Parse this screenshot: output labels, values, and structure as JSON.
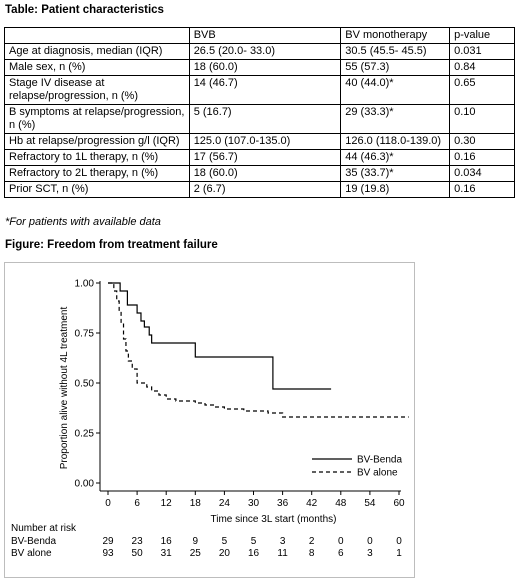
{
  "table": {
    "title": "Table: Patient characteristics",
    "headers": [
      "",
      "BVB",
      "BV monotherapy",
      "p-value"
    ],
    "rows": [
      [
        "Age at diagnosis, median (IQR)",
        "26.5 (20.0- 33.0)",
        "30.5 (45.5- 45.5)",
        "0.031"
      ],
      [
        "Male sex, n (%)",
        "18 (60.0)",
        "55 (57.3)",
        "0.84"
      ],
      [
        "Stage IV disease at relapse/progression, n (%)",
        "14 (46.7)",
        "40 (44.0)*",
        "0.65"
      ],
      [
        "B symptoms at relapse/progression, n (%)",
        "5 (16.7)",
        "29 (33.3)*",
        "0.10"
      ],
      [
        "Hb at relapse/progression g/l (IQR)",
        "125.0 (107.0-135.0)",
        "126.0 (118.0-139.0)",
        "0.30"
      ],
      [
        "Refractory to 1L therapy, n (%)",
        "17 (56.7)",
        "44 (46.3)*",
        "0.16"
      ],
      [
        "Refractory to 2L therapy, n (%)",
        "18 (60.0)",
        "35 (33.7)*",
        "0.034"
      ],
      [
        "Prior SCT, n (%)",
        "2 (6.7)",
        "19 (19.8)",
        "0.16"
      ]
    ],
    "footnote": "*For patients with available data"
  },
  "figure": {
    "title": "Figure: Freedom from treatment failure"
  },
  "chart_data": {
    "type": "line",
    "title": "",
    "xlabel": "Time since 3L start (months)",
    "ylabel": "Proportion alive without 4L treatment",
    "xlim": [
      0,
      60
    ],
    "ylim": [
      0,
      1
    ],
    "xticks": [
      0,
      6,
      12,
      18,
      24,
      30,
      36,
      42,
      48,
      54,
      60
    ],
    "yticks": [
      0.0,
      0.25,
      0.5,
      0.75,
      1.0
    ],
    "ytick_labels": [
      "0.00",
      "0.25",
      "0.50",
      "0.75",
      "1.00"
    ],
    "legend_position": "bottom-right",
    "series": [
      {
        "name": "BV-Benda",
        "style": "solid",
        "x": [
          0,
          2.5,
          4,
          6,
          6.8,
          7.5,
          8.5,
          9,
          10,
          18,
          34,
          46
        ],
        "y": [
          1.0,
          0.96,
          0.89,
          0.85,
          0.81,
          0.78,
          0.74,
          0.7,
          0.7,
          0.63,
          0.47,
          0.47
        ]
      },
      {
        "name": "BV alone",
        "style": "dashed",
        "x": [
          0,
          1.2,
          1.8,
          2.3,
          2.7,
          3.2,
          3.7,
          4.2,
          5,
          6,
          8,
          9,
          10.5,
          12,
          14,
          16,
          18,
          20,
          22,
          24,
          28,
          33,
          36,
          62
        ],
        "y": [
          1.0,
          0.96,
          0.91,
          0.86,
          0.8,
          0.72,
          0.66,
          0.61,
          0.57,
          0.5,
          0.48,
          0.46,
          0.44,
          0.42,
          0.41,
          0.41,
          0.4,
          0.39,
          0.38,
          0.37,
          0.36,
          0.35,
          0.33,
          0.33
        ]
      }
    ],
    "risk_table": {
      "label": "Number at risk",
      "times": [
        0,
        6,
        12,
        18,
        24,
        30,
        36,
        42,
        48,
        54,
        60
      ],
      "rows": [
        {
          "name": "BV-Benda",
          "values": [
            "29",
            "23",
            "16",
            "9",
            "5",
            "5",
            "3",
            "2",
            "0",
            "0",
            "0"
          ]
        },
        {
          "name": "BV alone",
          "values": [
            "93",
            "50",
            "31",
            "25",
            "20",
            "16",
            "11",
            "8",
            "6",
            "3",
            "1"
          ]
        }
      ]
    }
  }
}
